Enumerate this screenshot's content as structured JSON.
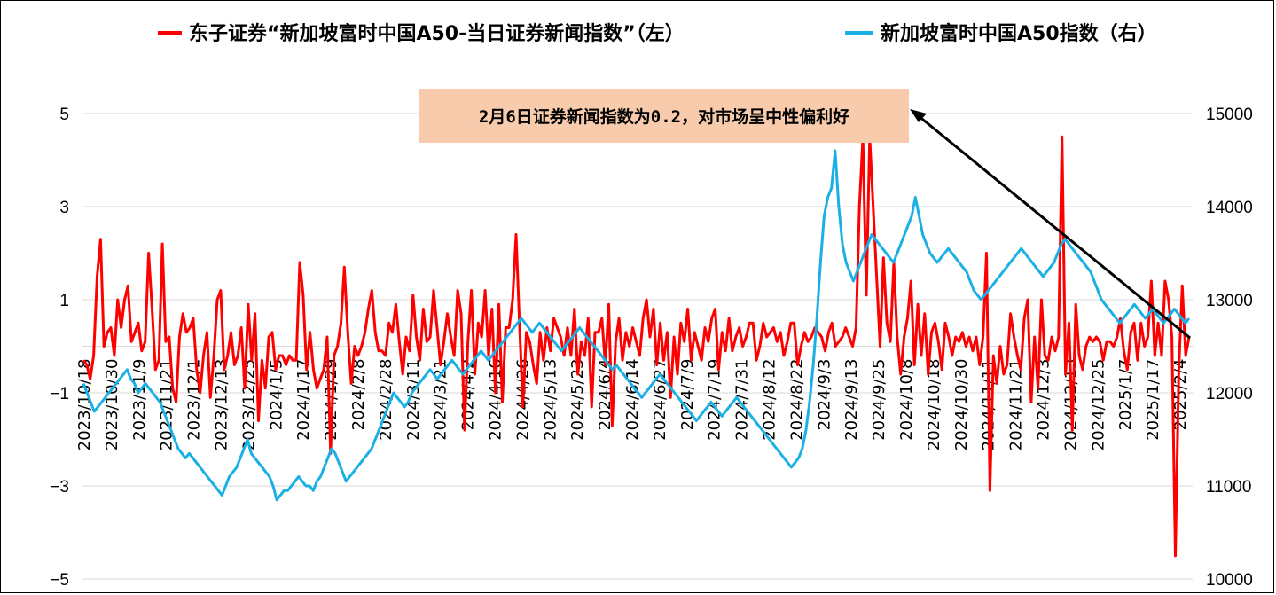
{
  "chart_data": {
    "type": "line",
    "title": "",
    "legend_position": "top",
    "grid": true,
    "y_left": {
      "min": -5,
      "max": 5,
      "ticks": [
        -5,
        -3,
        -1,
        1,
        3,
        5
      ]
    },
    "y_right": {
      "min": 10000,
      "max": 15000,
      "ticks": [
        10000,
        11000,
        12000,
        13000,
        14000,
        15000
      ]
    },
    "x_tick_labels": [
      "2023/10/18",
      "2023/10/30",
      "2023/11/9",
      "2023/11/21",
      "2023/12/1",
      "2023/12/13",
      "2023/12/25",
      "2024/1/5",
      "2024/1/17",
      "2024/1/29",
      "2024/2/8",
      "2024/2/28",
      "2024/3/11",
      "2024/3/21",
      "2024/4/2",
      "2024/4/16",
      "2024/4/26",
      "2024/5/13",
      "2024/5/23",
      "2024/6/4",
      "2024/6/14",
      "2024/6/27",
      "2024/7/9",
      "2024/7/19",
      "2024/7/31",
      "2024/8/12",
      "2024/8/22",
      "2024/9/3",
      "2024/9/13",
      "2024/9/25",
      "2024/10/8",
      "2024/10/18",
      "2024/10/30",
      "2024/11/11",
      "2024/11/21",
      "2024/12/3",
      "2024/12/13",
      "2024/12/25",
      "2025/1/7",
      "2025/1/17",
      "2025/2/4"
    ],
    "annotation": "2月6日证券新闻指数为0.2，对市场呈中性偏利好",
    "series": [
      {
        "name": "东子证券“新加坡富时中国A50-当日证券新闻指数”（左）",
        "axis": "left",
        "color": "#ff0000",
        "values": [
          -0.3,
          -0.4,
          -0.7,
          -0.2,
          1.5,
          2.3,
          0.0,
          0.3,
          0.4,
          -0.2,
          1.0,
          0.4,
          1.0,
          1.3,
          0.1,
          0.3,
          0.5,
          -0.1,
          0.1,
          2.0,
          0.8,
          -0.5,
          -0.3,
          2.2,
          0.1,
          0.2,
          -0.9,
          -1.2,
          0.2,
          0.7,
          0.3,
          0.4,
          0.6,
          -0.5,
          -1.0,
          -0.2,
          0.3,
          -1.1,
          -0.2,
          1.0,
          1.2,
          -0.5,
          -0.2,
          0.3,
          -0.4,
          -0.2,
          0.4,
          -0.9,
          0.9,
          -0.3,
          0.7,
          -1.6,
          -0.3,
          -0.9,
          0.2,
          0.3,
          -0.5,
          -0.2,
          -0.2,
          -0.4,
          -0.2,
          -0.3,
          -0.3,
          1.8,
          1.1,
          -0.5,
          0.3,
          -0.5,
          -0.9,
          -0.7,
          -0.5,
          0.2,
          -2.3,
          -0.2,
          0.0,
          0.5,
          1.7,
          0.3,
          -0.8,
          0.0,
          -0.2,
          0.0,
          0.3,
          0.8,
          1.2,
          0.3,
          -0.1,
          -0.1,
          -0.2,
          0.5,
          0.3,
          0.9,
          0.1,
          -0.6,
          0.2,
          -0.1,
          1.1,
          0.2,
          -0.3,
          0.8,
          0.1,
          0.2,
          1.2,
          0.4,
          -0.4,
          0.1,
          0.7,
          0.2,
          -0.2,
          1.2,
          0.7,
          -1.8,
          0.1,
          1.2,
          -0.6,
          0.5,
          0.2,
          1.2,
          -0.2,
          0.8,
          -1.0,
          0.9,
          -1.2,
          0.4,
          0.4,
          1.0,
          2.4,
          0.5,
          -1.3,
          0.3,
          0.1,
          -0.4,
          -0.8,
          0.3,
          -0.3,
          0.4,
          -0.1,
          0.6,
          0.4,
          0.2,
          -0.2,
          0.4,
          -0.2,
          0.8,
          -0.6,
          0.1,
          -0.2,
          0.6,
          -1.3,
          0.3,
          0.3,
          0.6,
          -0.4,
          0.9,
          -1.7,
          0.1,
          0.6,
          -0.3,
          0.3,
          0.0,
          0.4,
          0.1,
          -0.2,
          0.6,
          1.0,
          0.2,
          0.8,
          -0.4,
          0.5,
          -0.3,
          0.3,
          -1.1,
          0.2,
          -0.6,
          0.5,
          0.1,
          0.8,
          -0.3,
          0.3,
          0.0,
          -0.3,
          0.4,
          0.1,
          0.6,
          0.8,
          -0.5,
          0.3,
          -0.1,
          0.6,
          -0.1,
          0.2,
          0.4,
          0.0,
          0.2,
          0.5,
          0.5,
          -0.3,
          0.0,
          0.5,
          0.2,
          0.3,
          0.4,
          0.1,
          0.3,
          -0.2,
          0.1,
          0.5,
          0.5,
          -0.4,
          0.0,
          0.3,
          0.1,
          0.2,
          0.4,
          0.3,
          0.2,
          -0.1,
          0.3,
          0.5,
          0.0,
          0.1,
          0.2,
          0.4,
          0.2,
          0.0,
          0.4,
          3.0,
          4.5,
          1.1,
          4.5,
          3.0,
          1.5,
          0.0,
          1.9,
          0.5,
          0.1,
          1.8,
          0.2,
          -0.6,
          0.2,
          0.6,
          1.4,
          -0.4,
          0.9,
          -0.2,
          0.7,
          -0.6,
          0.3,
          0.5,
          0.1,
          -0.5,
          0.5,
          0.2,
          -0.2,
          0.2,
          0.1,
          0.3,
          0.0,
          0.2,
          -0.1,
          0.2,
          -0.4,
          0.2,
          2.0,
          -3.1,
          -0.2,
          -0.8,
          0.0,
          -0.6,
          -0.4,
          0.7,
          0.2,
          -0.2,
          -0.5,
          0.6,
          1.0,
          -1.2,
          0.2,
          -0.9,
          1.0,
          -0.2,
          -0.3,
          0.2,
          -0.1,
          0.2,
          4.5,
          -0.6,
          0.5,
          -1.8,
          0.9,
          -0.2,
          -0.5,
          0.0,
          0.2,
          0.1,
          0.2,
          0.1,
          -0.3,
          0.1,
          0.1,
          0.0,
          0.2,
          0.6,
          -0.1,
          -0.5,
          0.3,
          0.5,
          -0.3,
          0.5,
          0.0,
          0.2,
          1.4,
          -0.2,
          0.5,
          -0.2,
          1.4,
          1.0,
          0.2,
          -4.5,
          -0.5,
          1.3,
          -0.2,
          0.2
        ]
      },
      {
        "name": "新加坡富时中国A50指数（右）",
        "axis": "right",
        "color": "#1bb0e5",
        "values": [
          12100,
          12000,
          11900,
          11800,
          11850,
          11900,
          11950,
          12000,
          12050,
          12100,
          12150,
          12200,
          12250,
          12150,
          12100,
          12000,
          12050,
          12100,
          12050,
          12000,
          11950,
          11900,
          11800,
          11700,
          11600,
          11500,
          11400,
          11350,
          11300,
          11350,
          11300,
          11250,
          11200,
          11150,
          11100,
          11050,
          11000,
          10950,
          10900,
          11000,
          11100,
          11150,
          11200,
          11300,
          11400,
          11500,
          11350,
          11300,
          11250,
          11200,
          11150,
          11100,
          11000,
          10850,
          10900,
          10950,
          10950,
          11000,
          11050,
          11100,
          11050,
          11000,
          11000,
          10950,
          11050,
          11100,
          11200,
          11300,
          11400,
          11350,
          11250,
          11150,
          11050,
          11100,
          11150,
          11200,
          11250,
          11300,
          11350,
          11400,
          11500,
          11600,
          11700,
          11800,
          11900,
          12000,
          11950,
          11900,
          11850,
          11900,
          12000,
          12050,
          12100,
          12150,
          12200,
          12250,
          12200,
          12150,
          12200,
          12250,
          12300,
          12350,
          12300,
          12250,
          12200,
          12250,
          12300,
          12350,
          12400,
          12450,
          12400,
          12350,
          12400,
          12450,
          12500,
          12550,
          12600,
          12650,
          12700,
          12750,
          12800,
          12750,
          12700,
          12650,
          12700,
          12750,
          12700,
          12650,
          12600,
          12550,
          12500,
          12450,
          12500,
          12550,
          12600,
          12650,
          12700,
          12650,
          12600,
          12550,
          12500,
          12450,
          12400,
          12350,
          12300,
          12250,
          12300,
          12250,
          12200,
          12150,
          12100,
          12050,
          12000,
          11950,
          12000,
          12050,
          12100,
          12150,
          12200,
          12150,
          12100,
          12050,
          12000,
          11950,
          11900,
          11850,
          11800,
          11750,
          11700,
          11750,
          11800,
          11850,
          11900,
          11850,
          11800,
          11750,
          11800,
          11850,
          11900,
          11950,
          11900,
          11850,
          11800,
          11750,
          11700,
          11650,
          11600,
          11550,
          11500,
          11450,
          11400,
          11350,
          11300,
          11250,
          11200,
          11250,
          11300,
          11400,
          11600,
          11900,
          12300,
          12800,
          13400,
          13900,
          14100,
          14200,
          14600,
          14000,
          13600,
          13400,
          13300,
          13200,
          13300,
          13400,
          13500,
          13600,
          13700,
          13650,
          13600,
          13550,
          13500,
          13450,
          13400,
          13500,
          13600,
          13700,
          13800,
          13900,
          14100,
          13900,
          13700,
          13600,
          13500,
          13450,
          13400,
          13450,
          13500,
          13550,
          13500,
          13450,
          13400,
          13350,
          13300,
          13200,
          13100,
          13050,
          13000,
          13050,
          13100,
          13150,
          13200,
          13250,
          13300,
          13350,
          13400,
          13450,
          13500,
          13550,
          13500,
          13450,
          13400,
          13350,
          13300,
          13250,
          13300,
          13350,
          13400,
          13500,
          13600,
          13650,
          13600,
          13550,
          13500,
          13450,
          13400,
          13350,
          13300,
          13200,
          13100,
          13000,
          12950,
          12900,
          12850,
          12800,
          12750,
          12800,
          12850,
          12900,
          12950,
          12900,
          12850,
          12800,
          12850,
          12900,
          12850,
          12800,
          12750,
          12800,
          12850,
          12900,
          12850,
          12800,
          12750,
          12800
        ]
      }
    ]
  }
}
